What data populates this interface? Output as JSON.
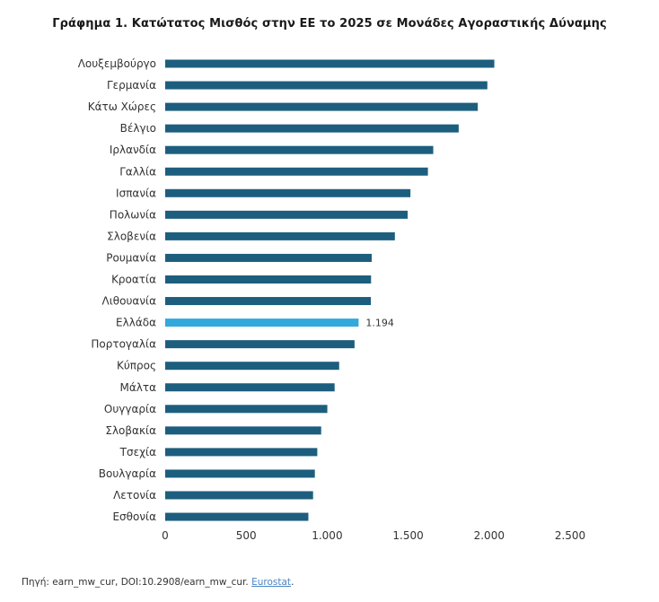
{
  "chart_data": {
    "type": "bar",
    "orientation": "horizontal",
    "title": "Γράφημα 1. Κατώτατος Μισθός στην ΕΕ το 2025 σε Μονάδες Αγοραστικής Δύναμης",
    "categories": [
      "Λουξεμβούργο",
      "Γερμανία",
      "Κάτω Χώρες",
      "Βέλγιο",
      "Ιρλανδία",
      "Γαλλία",
      "Ισπανία",
      "Πολωνία",
      "Σλοβενία",
      "Ρουμανία",
      "Κροατία",
      "Λιθουανία",
      "Ελλάδα",
      "Πορτογαλία",
      "Κύπρος",
      "Μάλτα",
      "Ουγγαρία",
      "Σλοβακία",
      "Τσεχία",
      "Βουλγαρία",
      "Λετονία",
      "Εσθονία"
    ],
    "values": [
      2032,
      1989,
      1930,
      1812,
      1655,
      1622,
      1514,
      1497,
      1418,
      1275,
      1271,
      1270,
      1194,
      1169,
      1074,
      1046,
      1001,
      963,
      939,
      924,
      913,
      884
    ],
    "highlight_index": 12,
    "data_labels": [
      {
        "index": 12,
        "text": "1.194"
      }
    ],
    "xlim": [
      0,
      2500
    ],
    "xticks": [
      0,
      500,
      1000,
      1500,
      2000,
      2500
    ],
    "xtick_labels": [
      "0",
      "500",
      "1.000",
      "1.500",
      "2.000",
      "2.500"
    ],
    "colors": {
      "bar": "#1d5e7e",
      "highlight": "#33a9db"
    }
  },
  "source": {
    "text": "Πηγή: earn_mw_cur, DOI:10.2908/earn_mw_cur. ",
    "link": "Eurostat",
    "suffix": "."
  }
}
